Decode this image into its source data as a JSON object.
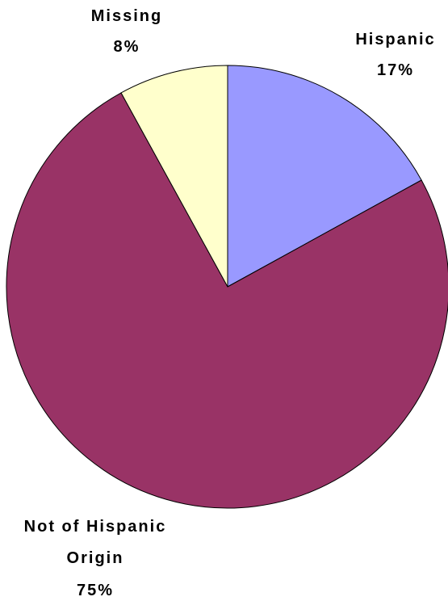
{
  "chart_data": {
    "type": "pie",
    "title": "",
    "slices": [
      {
        "label": "Hispanic",
        "value": 17,
        "value_label": "17%",
        "color": "#9999ff"
      },
      {
        "label": "Not of Hispanic Origin",
        "label_lines": [
          "Not of Hispanic",
          "Origin"
        ],
        "value": 75,
        "value_label": "75%",
        "color": "#993366"
      },
      {
        "label": "Missing",
        "value": 8,
        "value_label": "8%",
        "color": "#ffffcc"
      }
    ],
    "start_angle": "12 o'clock, clockwise",
    "legend": "none"
  }
}
